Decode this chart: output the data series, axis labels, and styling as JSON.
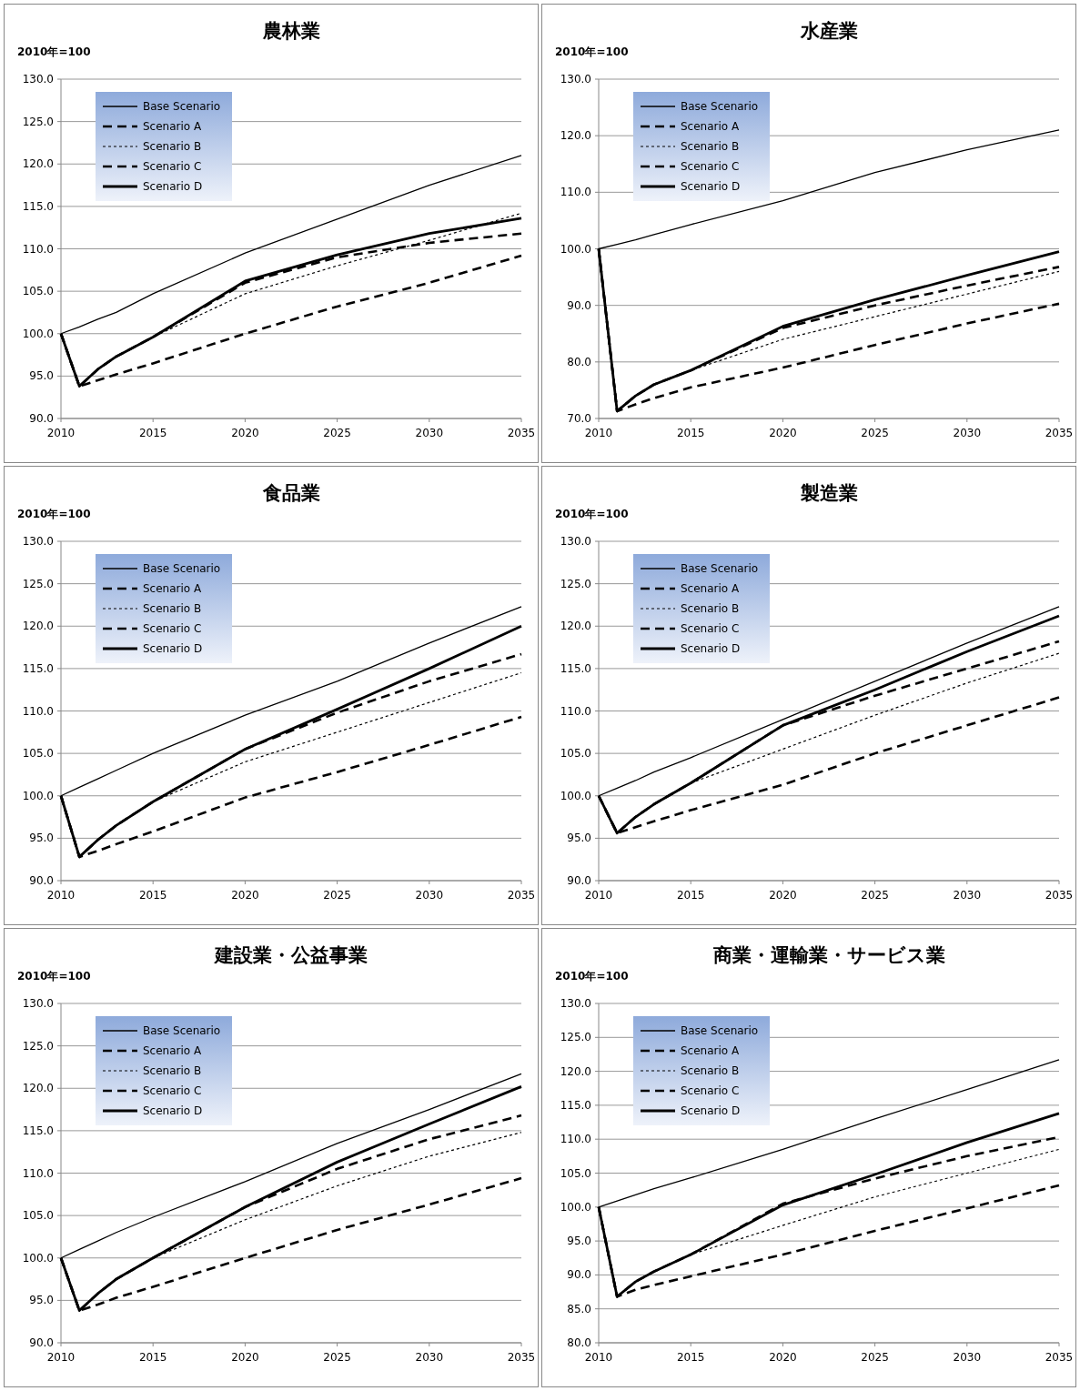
{
  "chart_data": [
    {
      "type": "line",
      "title": "農林業",
      "ylabel": "2010年=100",
      "x": [
        2010,
        2011,
        2012,
        2013,
        2015,
        2020,
        2025,
        2030,
        2035
      ],
      "xlim": [
        2010,
        2035
      ],
      "xticks": [
        2010,
        2015,
        2020,
        2025,
        2030,
        2035
      ],
      "ylim": [
        90,
        130
      ],
      "yticks": [
        {
          "value": 90,
          "label": "90.0"
        },
        {
          "value": 95,
          "label": "95.0"
        },
        {
          "value": 100,
          "label": "100.0"
        },
        {
          "value": 105,
          "label": "105.0"
        },
        {
          "value": 110,
          "label": "110.0"
        },
        {
          "value": 115,
          "label": "115.0"
        },
        {
          "value": 120,
          "label": "120.0"
        },
        {
          "value": 125,
          "label": "125.0"
        },
        {
          "value": 130,
          "label": "130.0"
        }
      ],
      "grid": "y",
      "legend": "top left",
      "series": [
        {
          "name": "Base Scenario",
          "color": "#000000",
          "line_style": "solid",
          "values": [
            100,
            100.8,
            101.7,
            102.5,
            104.7,
            109.5,
            113.5,
            117.5,
            121
          ]
        },
        {
          "name": "Scenario A",
          "color": "#000000",
          "line_style": "dashed",
          "values": [
            100,
            93.8,
            94.5,
            95.2,
            96.5,
            100,
            103.2,
            106,
            109.2
          ]
        },
        {
          "name": "Scenario B",
          "color": "#000000",
          "line_style": "dotted",
          "values": [
            100,
            93.8,
            95.8,
            97.3,
            99.6,
            104.7,
            108,
            111,
            114.2
          ]
        },
        {
          "name": "Scenario C",
          "color": "#000000",
          "line_style": "dashed",
          "values": [
            100,
            93.8,
            95.8,
            97.3,
            99.6,
            106,
            109,
            110.7,
            111.8
          ]
        },
        {
          "name": "Scenario D",
          "color": "#000000",
          "line_style": "solid",
          "values": [
            100,
            93.8,
            95.8,
            97.3,
            99.6,
            106.2,
            109.3,
            111.8,
            113.6
          ]
        }
      ]
    },
    {
      "type": "line",
      "title": "水産業",
      "ylabel": "2010年=100",
      "x": [
        2010,
        2011,
        2012,
        2013,
        2015,
        2020,
        2025,
        2030,
        2035
      ],
      "xlim": [
        2010,
        2035
      ],
      "xticks": [
        2010,
        2015,
        2020,
        2025,
        2030,
        2035
      ],
      "ylim": [
        70,
        130
      ],
      "yticks": [
        {
          "value": 70,
          "label": "70.0"
        },
        {
          "value": 80,
          "label": "80.0"
        },
        {
          "value": 90,
          "label": "90.0"
        },
        {
          "value": 100,
          "label": "100.0"
        },
        {
          "value": 110,
          "label": "110.0"
        },
        {
          "value": 120,
          "label": "120.0"
        },
        {
          "value": 130,
          "label": "130.0"
        }
      ],
      "grid": "y",
      "legend": "top left",
      "series": [
        {
          "name": "Base Scenario",
          "color": "#000000",
          "line_style": "solid",
          "values": [
            100,
            100.8,
            101.6,
            102.5,
            104.3,
            108.5,
            113.5,
            117.5,
            121
          ]
        },
        {
          "name": "Scenario A",
          "color": "#000000",
          "line_style": "dashed",
          "values": [
            100,
            71.3,
            72.5,
            73.6,
            75.5,
            79,
            83,
            86.8,
            90.3
          ]
        },
        {
          "name": "Scenario B",
          "color": "#000000",
          "line_style": "dotted",
          "values": [
            100,
            71.3,
            74,
            76,
            78.5,
            84,
            88,
            92,
            96
          ]
        },
        {
          "name": "Scenario C",
          "color": "#000000",
          "line_style": "dashed",
          "values": [
            100,
            71.3,
            74,
            76,
            78.5,
            86,
            90,
            93.5,
            96.8
          ]
        },
        {
          "name": "Scenario D",
          "color": "#000000",
          "line_style": "solid",
          "values": [
            100,
            71.3,
            74,
            76,
            78.5,
            86.3,
            91,
            95.3,
            99.5
          ]
        }
      ]
    },
    {
      "type": "line",
      "title": "食品業",
      "ylabel": "2010年=100",
      "x": [
        2010,
        2011,
        2012,
        2013,
        2015,
        2020,
        2025,
        2030,
        2035
      ],
      "xlim": [
        2010,
        2035
      ],
      "xticks": [
        2010,
        2015,
        2020,
        2025,
        2030,
        2035
      ],
      "ylim": [
        90,
        130
      ],
      "yticks": [
        {
          "value": 90,
          "label": "90.0"
        },
        {
          "value": 95,
          "label": "95.0"
        },
        {
          "value": 100,
          "label": "100.0"
        },
        {
          "value": 105,
          "label": "105.0"
        },
        {
          "value": 110,
          "label": "110.0"
        },
        {
          "value": 115,
          "label": "115.0"
        },
        {
          "value": 120,
          "label": "120.0"
        },
        {
          "value": 125,
          "label": "125.0"
        },
        {
          "value": 130,
          "label": "130.0"
        }
      ],
      "grid": "y",
      "legend": "top left",
      "series": [
        {
          "name": "Base Scenario",
          "color": "#000000",
          "line_style": "solid",
          "values": [
            100,
            101,
            102,
            103,
            105,
            109.5,
            113.5,
            118,
            122.3
          ]
        },
        {
          "name": "Scenario A",
          "color": "#000000",
          "line_style": "dashed",
          "values": [
            100,
            92.8,
            93.5,
            94.3,
            95.8,
            99.8,
            102.8,
            106,
            109.3
          ]
        },
        {
          "name": "Scenario B",
          "color": "#000000",
          "line_style": "dotted",
          "values": [
            100,
            92.8,
            94.8,
            96.5,
            99.3,
            104,
            107.5,
            111,
            114.5
          ]
        },
        {
          "name": "Scenario C",
          "color": "#000000",
          "line_style": "dashed",
          "values": [
            100,
            92.8,
            94.8,
            96.5,
            99.3,
            105.5,
            109.8,
            113.5,
            116.7
          ]
        },
        {
          "name": "Scenario D",
          "color": "#000000",
          "line_style": "solid",
          "values": [
            100,
            92.8,
            94.8,
            96.5,
            99.3,
            105.5,
            110.2,
            115,
            120
          ]
        }
      ]
    },
    {
      "type": "line",
      "title": "製造業",
      "ylabel": "2010年=100",
      "x": [
        2010,
        2011,
        2012,
        2013,
        2015,
        2020,
        2025,
        2030,
        2035
      ],
      "xlim": [
        2010,
        2035
      ],
      "xticks": [
        2010,
        2015,
        2020,
        2025,
        2030,
        2035
      ],
      "ylim": [
        90,
        130
      ],
      "yticks": [
        {
          "value": 90,
          "label": "90.0"
        },
        {
          "value": 95,
          "label": "95.0"
        },
        {
          "value": 100,
          "label": "100.0"
        },
        {
          "value": 105,
          "label": "105.0"
        },
        {
          "value": 110,
          "label": "110.0"
        },
        {
          "value": 115,
          "label": "115.0"
        },
        {
          "value": 120,
          "label": "120.0"
        },
        {
          "value": 125,
          "label": "125.0"
        },
        {
          "value": 130,
          "label": "130.0"
        }
      ],
      "grid": "y",
      "legend": "top left",
      "series": [
        {
          "name": "Base Scenario",
          "color": "#000000",
          "line_style": "solid",
          "values": [
            100,
            100.9,
            101.8,
            102.8,
            104.5,
            109,
            113.5,
            118,
            122.3
          ]
        },
        {
          "name": "Scenario A",
          "color": "#000000",
          "line_style": "dashed",
          "values": [
            100,
            95.6,
            96.3,
            97,
            98.3,
            101.3,
            105,
            108.3,
            111.6
          ]
        },
        {
          "name": "Scenario B",
          "color": "#000000",
          "line_style": "dotted",
          "values": [
            100,
            95.6,
            97.5,
            99,
            101.5,
            105.5,
            109.5,
            113.3,
            116.8
          ]
        },
        {
          "name": "Scenario C",
          "color": "#000000",
          "line_style": "dashed",
          "values": [
            100,
            95.6,
            97.5,
            99,
            101.5,
            108.3,
            111.8,
            115,
            118.2
          ]
        },
        {
          "name": "Scenario D",
          "color": "#000000",
          "line_style": "solid",
          "values": [
            100,
            95.6,
            97.5,
            99,
            101.5,
            108.3,
            112.5,
            117,
            121.2
          ]
        }
      ]
    },
    {
      "type": "line",
      "title": "建設業・公益事業",
      "ylabel": "2010年=100",
      "x": [
        2010,
        2011,
        2012,
        2013,
        2015,
        2020,
        2025,
        2030,
        2035
      ],
      "xlim": [
        2010,
        2035
      ],
      "xticks": [
        2010,
        2015,
        2020,
        2025,
        2030,
        2035
      ],
      "ylim": [
        90,
        130
      ],
      "yticks": [
        {
          "value": 90,
          "label": "90.0"
        },
        {
          "value": 95,
          "label": "95.0"
        },
        {
          "value": 100,
          "label": "100.0"
        },
        {
          "value": 105,
          "label": "105.0"
        },
        {
          "value": 110,
          "label": "110.0"
        },
        {
          "value": 115,
          "label": "115.0"
        },
        {
          "value": 120,
          "label": "120.0"
        },
        {
          "value": 125,
          "label": "125.0"
        },
        {
          "value": 130,
          "label": "130.0"
        }
      ],
      "grid": "y",
      "legend": "top left",
      "series": [
        {
          "name": "Base Scenario",
          "color": "#000000",
          "line_style": "solid",
          "values": [
            100,
            101,
            102,
            103,
            104.8,
            109,
            113.5,
            117.5,
            121.7
          ]
        },
        {
          "name": "Scenario A",
          "color": "#000000",
          "line_style": "dashed",
          "values": [
            100,
            93.8,
            94.5,
            95.3,
            96.6,
            100,
            103.3,
            106.3,
            109.4
          ]
        },
        {
          "name": "Scenario B",
          "color": "#000000",
          "line_style": "dotted",
          "values": [
            100,
            93.8,
            95.8,
            97.5,
            100,
            104.5,
            108.5,
            112,
            114.8
          ]
        },
        {
          "name": "Scenario C",
          "color": "#000000",
          "line_style": "dashed",
          "values": [
            100,
            93.8,
            95.8,
            97.5,
            100,
            106,
            110.5,
            114,
            116.8
          ]
        },
        {
          "name": "Scenario D",
          "color": "#000000",
          "line_style": "solid",
          "values": [
            100,
            93.8,
            95.8,
            97.5,
            100,
            106,
            111.3,
            115.8,
            120.2
          ]
        }
      ]
    },
    {
      "type": "line",
      "title": "商業・運輸業・サービス業",
      "ylabel": "2010年=100",
      "x": [
        2010,
        2011,
        2012,
        2013,
        2015,
        2020,
        2025,
        2030,
        2035
      ],
      "xlim": [
        2010,
        2035
      ],
      "xticks": [
        2010,
        2015,
        2020,
        2025,
        2030,
        2035
      ],
      "ylim": [
        80,
        130
      ],
      "yticks": [
        {
          "value": 80,
          "label": "80.0"
        },
        {
          "value": 85,
          "label": "85.0"
        },
        {
          "value": 90,
          "label": "90.0"
        },
        {
          "value": 95,
          "label": "95.0"
        },
        {
          "value": 100,
          "label": "100.0"
        },
        {
          "value": 105,
          "label": "105.0"
        },
        {
          "value": 110,
          "label": "110.0"
        },
        {
          "value": 115,
          "label": "115.0"
        },
        {
          "value": 120,
          "label": "120.0"
        },
        {
          "value": 125,
          "label": "125.0"
        },
        {
          "value": 130,
          "label": "130.0"
        }
      ],
      "grid": "y",
      "legend": "top left",
      "series": [
        {
          "name": "Base Scenario",
          "color": "#000000",
          "line_style": "solid",
          "values": [
            100,
            100.9,
            101.8,
            102.7,
            104.3,
            108.5,
            113,
            117.3,
            121.7
          ]
        },
        {
          "name": "Scenario A",
          "color": "#000000",
          "line_style": "dashed",
          "values": [
            100,
            86.8,
            87.8,
            88.5,
            89.8,
            93,
            96.5,
            99.8,
            103.2
          ]
        },
        {
          "name": "Scenario B",
          "color": "#000000",
          "line_style": "dotted",
          "values": [
            100,
            86.8,
            89,
            90.5,
            93,
            97.3,
            101.5,
            105,
            108.5
          ]
        },
        {
          "name": "Scenario C",
          "color": "#000000",
          "line_style": "dashed",
          "values": [
            100,
            86.8,
            89,
            90.5,
            93,
            100.5,
            104.2,
            107.5,
            110.3
          ]
        },
        {
          "name": "Scenario D",
          "color": "#000000",
          "line_style": "solid",
          "values": [
            100,
            86.8,
            89,
            90.5,
            93,
            100.3,
            104.8,
            109.5,
            113.8
          ]
        }
      ]
    }
  ]
}
